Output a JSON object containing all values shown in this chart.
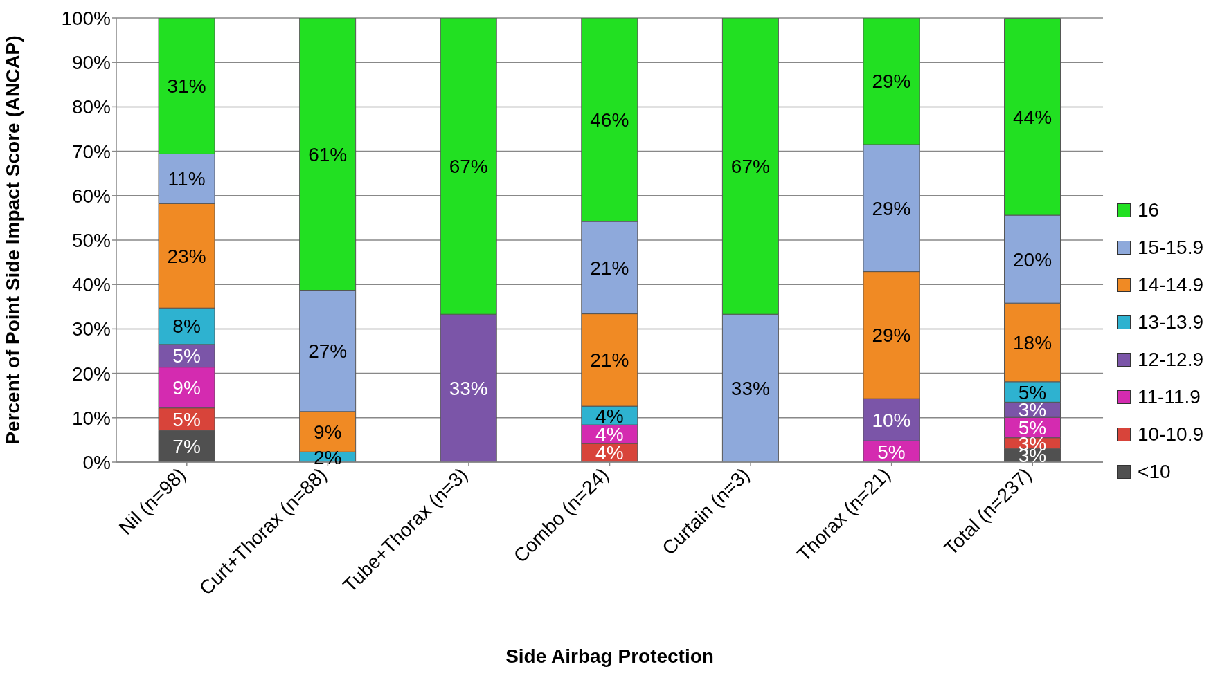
{
  "chart_data": {
    "type": "bar",
    "stacked": true,
    "xlabel": "Side Airbag Protection",
    "ylabel": "Percent of Point Side Impact Score (ANCAP)",
    "categories": [
      "Nil (n=98)",
      "Curt+Thorax (n=88)",
      "Tube+Thorax (n=3)",
      "Combo (n=24)",
      "Curtain (n=3)",
      "Thorax (n=21)",
      "Total (n=237)"
    ],
    "series": [
      {
        "name": "<10",
        "color": "#505050",
        "values": [
          7.1,
          null,
          null,
          null,
          null,
          null,
          3.0
        ],
        "value_labels": [
          "7%",
          null,
          null,
          null,
          null,
          null,
          "3%"
        ]
      },
      {
        "name": "10-10.9",
        "color": "#d8443a",
        "values": [
          5.1,
          null,
          null,
          4.2,
          null,
          null,
          2.5
        ],
        "value_labels": [
          "5%",
          null,
          null,
          "4%",
          null,
          null,
          "3%"
        ]
      },
      {
        "name": "11-11.9",
        "color": "#d42bb0",
        "values": [
          9.2,
          null,
          null,
          4.2,
          null,
          4.8,
          4.6
        ],
        "value_labels": [
          "9%",
          null,
          null,
          "4%",
          null,
          "5%",
          "5%"
        ]
      },
      {
        "name": "12-12.9",
        "color": "#7b55a8",
        "values": [
          5.1,
          null,
          33.3,
          null,
          null,
          9.5,
          3.4
        ],
        "value_labels": [
          "5%",
          null,
          "33%",
          null,
          null,
          "10%",
          "3%"
        ]
      },
      {
        "name": "13-13.9",
        "color": "#2eb2d0",
        "values": [
          8.2,
          2.3,
          null,
          4.2,
          null,
          null,
          4.6
        ],
        "value_labels": [
          "8%",
          "2%",
          null,
          "4%",
          null,
          null,
          "5%"
        ]
      },
      {
        "name": "14-14.9",
        "color": "#f08a24",
        "values": [
          23.5,
          9.1,
          null,
          20.8,
          null,
          28.6,
          17.7
        ],
        "value_labels": [
          "23%",
          "9%",
          null,
          "21%",
          null,
          "29%",
          "18%"
        ]
      },
      {
        "name": "15-15.9",
        "color": "#8ea9db",
        "values": [
          11.2,
          27.3,
          null,
          20.8,
          33.3,
          28.6,
          19.8
        ],
        "value_labels": [
          "11%",
          "27%",
          null,
          "21%",
          "33%",
          "29%",
          "20%"
        ]
      },
      {
        "name": "16",
        "color": "#22e022",
        "values": [
          30.6,
          61.3,
          66.7,
          45.8,
          66.7,
          28.5,
          44.3
        ],
        "value_labels": [
          "31%",
          "61%",
          "67%",
          "46%",
          "67%",
          "29%",
          "44%"
        ]
      }
    ],
    "ylim": [
      0,
      100
    ],
    "yticks": [
      {
        "value": 0,
        "label": "0%"
      },
      {
        "value": 10,
        "label": "10%"
      },
      {
        "value": 20,
        "label": "20%"
      },
      {
        "value": 30,
        "label": "30%"
      },
      {
        "value": 40,
        "label": "40%"
      },
      {
        "value": 50,
        "label": "50%"
      },
      {
        "value": 60,
        "label": "60%"
      },
      {
        "value": 70,
        "label": "70%"
      },
      {
        "value": 80,
        "label": "80%"
      },
      {
        "value": 90,
        "label": "90%"
      },
      {
        "value": 100,
        "label": "100%"
      }
    ],
    "grid": "y",
    "legend": "right"
  }
}
